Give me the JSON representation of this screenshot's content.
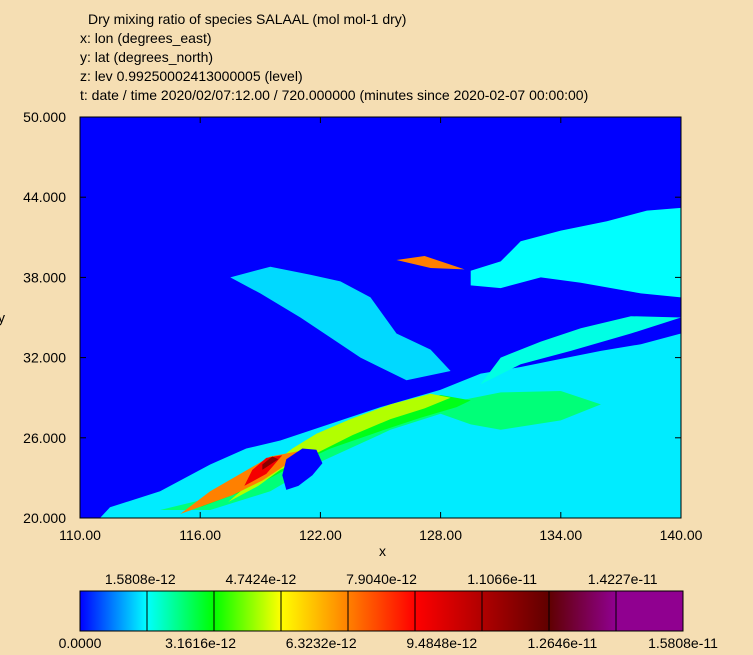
{
  "header": {
    "title": "Dry mixing ratio of species SALAAL (mol mol-1 dry)",
    "x_line": "x: lon  (degrees_east)",
    "y_line": "y: lat  (degrees_north)",
    "z_line": "z: lev 0.99250002413000005 (level)",
    "t_line": "t: date / time 2020/02/07:12.00 / 720.000000 (minutes since 2020-02-07 00:00:00)"
  },
  "chart_data": {
    "type": "heatmap",
    "title": "Dry mixing ratio of species SALAAL (mol mol-1 dry)",
    "xlabel": "x",
    "ylabel": "y",
    "xlim": [
      110,
      140
    ],
    "ylim": [
      20,
      50
    ],
    "x_ticks": [
      110,
      116,
      122,
      128,
      134,
      140
    ],
    "x_tick_labels": [
      "110.00",
      "116.00",
      "122.00",
      "128.00",
      "134.00",
      "140.00"
    ],
    "y_ticks": [
      20,
      26,
      32,
      38,
      44,
      50
    ],
    "y_tick_labels": [
      "20.000",
      "26.000",
      "32.000",
      "38.000",
      "44.000",
      "50.000"
    ],
    "background_color": "#0000ff",
    "colorbar": {
      "min": 0,
      "max": 1.5808e-11,
      "segments": 10,
      "labels_top": [
        "1.5808e-12",
        "4.7424e-12",
        "7.9040e-12",
        "1.1066e-11",
        "1.4227e-11"
      ],
      "labels_bottom": [
        "0.0000",
        "3.1616e-12",
        "6.3232e-12",
        "9.4848e-12",
        "1.2646e-11",
        "1.5808e-11"
      ],
      "colors": [
        "#0000ff",
        "#00ffff",
        "#00ff00",
        "#ffff00",
        "#ff8000",
        "#ff0000",
        "#b00000",
        "#600000",
        "#900090"
      ]
    },
    "regions": [
      {
        "name": "continental-plume-low",
        "level": 0.18,
        "points": [
          [
            111,
            20
          ],
          [
            111.5,
            20.8
          ],
          [
            114,
            22
          ],
          [
            116.5,
            24
          ],
          [
            118.3,
            25.2
          ],
          [
            120,
            25.8
          ],
          [
            122,
            26.8
          ],
          [
            125,
            28.3
          ],
          [
            128,
            29.6
          ],
          [
            130,
            30.8
          ],
          [
            132,
            31.3
          ],
          [
            134,
            31.9
          ],
          [
            136,
            32.5
          ],
          [
            138,
            33
          ],
          [
            140,
            33.8
          ],
          [
            140,
            20
          ]
        ]
      },
      {
        "name": "northern-flow-low",
        "level": 0.16,
        "points": [
          [
            126.3,
            30.3
          ],
          [
            124,
            32
          ],
          [
            122.5,
            33.5
          ],
          [
            121,
            35
          ],
          [
            119,
            36.8
          ],
          [
            117.5,
            38
          ],
          [
            119.5,
            38.8
          ],
          [
            121.5,
            38.2
          ],
          [
            123,
            37.7
          ],
          [
            124.5,
            36.5
          ],
          [
            125.8,
            33.8
          ],
          [
            127.5,
            32.6
          ],
          [
            128.5,
            31
          ]
        ]
      },
      {
        "name": "sea-of-japan-band",
        "level": 0.2,
        "points": [
          [
            129.5,
            38.5
          ],
          [
            131,
            39.2
          ],
          [
            132,
            40.7
          ],
          [
            134,
            41.5
          ],
          [
            136.3,
            42.2
          ],
          [
            138.3,
            43
          ],
          [
            140,
            43.2
          ],
          [
            140,
            36.5
          ],
          [
            138,
            36.8
          ],
          [
            135,
            37.6
          ],
          [
            133,
            38
          ],
          [
            131,
            37.2
          ],
          [
            129.5,
            37.4
          ]
        ]
      },
      {
        "name": "pacific-band",
        "level": 0.22,
        "points": [
          [
            140,
            35
          ],
          [
            137.5,
            33.8
          ],
          [
            134.5,
            32.5
          ],
          [
            132,
            31.5
          ],
          [
            130,
            30
          ],
          [
            131,
            32
          ],
          [
            133,
            33.2
          ],
          [
            135,
            34.2
          ],
          [
            137.5,
            35.1
          ]
        ]
      },
      {
        "name": "land-band-mid",
        "level": 0.3,
        "points": [
          [
            114,
            20.6
          ],
          [
            116.5,
            21.5
          ],
          [
            118.5,
            22.8
          ],
          [
            120.5,
            24
          ],
          [
            123,
            25.8
          ],
          [
            126,
            27.2
          ],
          [
            128,
            28.5
          ],
          [
            131,
            29.4
          ],
          [
            134,
            29.5
          ],
          [
            136,
            28.5
          ],
          [
            134,
            27.3
          ],
          [
            131,
            26.6
          ],
          [
            129.5,
            27
          ],
          [
            128,
            27.8
          ],
          [
            125.5,
            26.6
          ],
          [
            122,
            24.2
          ],
          [
            119.5,
            22
          ],
          [
            116.5,
            20.6
          ]
        ]
      },
      {
        "name": "green-band",
        "level": 0.38,
        "points": [
          [
            116,
            20.8
          ],
          [
            118.5,
            22.2
          ],
          [
            120.5,
            23.8
          ],
          [
            122.5,
            25.2
          ],
          [
            125,
            26.5
          ],
          [
            127,
            27.5
          ],
          [
            128.8,
            28.3
          ],
          [
            129.5,
            28.8
          ],
          [
            128,
            29.2
          ],
          [
            126,
            28.6
          ],
          [
            123.6,
            27.3
          ],
          [
            121.8,
            26
          ],
          [
            120,
            24.5
          ],
          [
            117.5,
            22.2
          ]
        ]
      },
      {
        "name": "yellow-core",
        "level": 0.47,
        "points": [
          [
            117.4,
            21.2
          ],
          [
            118.9,
            22.4
          ],
          [
            120,
            23.6
          ],
          [
            121.6,
            24.7
          ],
          [
            123.6,
            26.2
          ],
          [
            125.5,
            27.4
          ],
          [
            127.2,
            28.2
          ],
          [
            128.5,
            29
          ],
          [
            127.5,
            29.3
          ],
          [
            125.5,
            28.5
          ],
          [
            123.5,
            27.4
          ],
          [
            121.8,
            26.3
          ],
          [
            120.6,
            25.2
          ],
          [
            119,
            23.3
          ]
        ]
      },
      {
        "name": "orange-core",
        "level": 0.6,
        "points": [
          [
            115,
            20.3
          ],
          [
            117.6,
            21.7
          ],
          [
            119.1,
            22.8
          ],
          [
            120.2,
            23.9
          ],
          [
            120.9,
            25
          ],
          [
            119.5,
            24.6
          ],
          [
            118,
            23.3
          ],
          [
            116.5,
            22
          ]
        ]
      },
      {
        "name": "red-core",
        "level": 0.71,
        "points": [
          [
            118.2,
            22.4
          ],
          [
            119.3,
            23.3
          ],
          [
            120.1,
            24.7
          ],
          [
            119.3,
            24.5
          ],
          [
            118.6,
            23.6
          ]
        ]
      },
      {
        "name": "dark-red-core",
        "level": 0.82,
        "points": [
          [
            119.1,
            23.6
          ],
          [
            119.9,
            24.4
          ],
          [
            119.6,
            24.6
          ],
          [
            119.1,
            24
          ]
        ]
      },
      {
        "name": "taiwan-island",
        "level": 0.0,
        "points": [
          [
            120.3,
            22.1
          ],
          [
            120.9,
            22.4
          ],
          [
            121.6,
            23.2
          ],
          [
            122.1,
            24.1
          ],
          [
            121.8,
            25.1
          ],
          [
            121.1,
            25.2
          ],
          [
            120.3,
            24.4
          ],
          [
            120.1,
            23.2
          ]
        ]
      },
      {
        "name": "korea-jet",
        "level": 0.6,
        "points": [
          [
            125.8,
            39.3
          ],
          [
            127.2,
            39.6
          ],
          [
            128.4,
            39
          ],
          [
            129.2,
            38.6
          ],
          [
            127.5,
            38.7
          ]
        ]
      }
    ]
  }
}
